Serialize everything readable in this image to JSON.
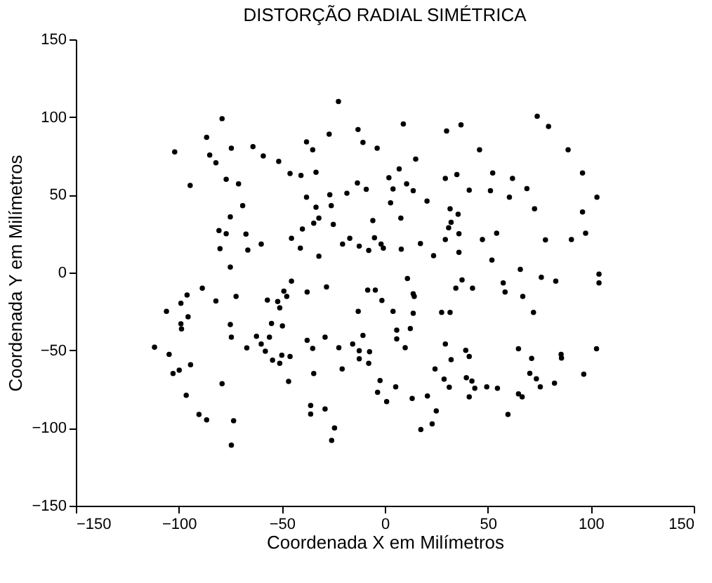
{
  "chart_data": {
    "type": "scatter",
    "title": "DISTORÇÃO RADIAL SIMÉTRICA",
    "xlabel": "Coordenada X em Milímetros",
    "ylabel": "Coordenada Y em Milímetros",
    "xlim": [
      -150,
      150
    ],
    "ylim": [
      -150,
      150
    ],
    "xticks": [
      -150,
      -100,
      -50,
      0,
      50,
      100,
      150
    ],
    "yticks": [
      -150,
      -100,
      -50,
      0,
      50,
      100,
      150
    ],
    "grid": false,
    "marker": "circle",
    "series": [
      {
        "color": "#000000",
        "x": [
          -22.5,
          -79,
          74,
          79.5,
          9,
          37,
          30,
          -13,
          -27,
          -86.5,
          -102,
          -74.5,
          -64,
          -59,
          -51.5,
          -85,
          -82,
          -38,
          -35,
          -10.6,
          -3.7,
          46,
          89,
          15,
          96,
          -46,
          -40.7,
          -33.4,
          2,
          7,
          10.6,
          13.8,
          29.4,
          35,
          41,
          52.4,
          62,
          69,
          51.3,
          60.5,
          103,
          -77,
          -71,
          -94.5,
          -38,
          -26.7,
          -26,
          -18.4,
          -13.3,
          -9,
          4,
          20.5,
          2.8,
          31.7,
          35.6,
          72.7,
          96,
          -69,
          -75,
          -33.4,
          -32,
          -34.5,
          -25,
          -40,
          -80.5,
          -77,
          -67.4,
          -80,
          -66.5,
          -60,
          -45.3,
          -41,
          -32,
          -20.5,
          -17,
          -12.4,
          -7.8,
          -5.8,
          -5,
          -1.8,
          -0.7,
          7.8,
          8,
          17.3,
          23.7,
          29.4,
          31,
          32.2,
          36,
          36,
          47.4,
          54.3,
          52,
          78,
          90.6,
          97.5,
          -75,
          65.8,
          76,
          83,
          104,
          104,
          11,
          37.5,
          42.6,
          34.5,
          57.5,
          58.4,
          67,
          -45.3,
          -37.7,
          -28.3,
          -49,
          -47.6,
          -52,
          -51,
          -57,
          -72.2,
          -82,
          -88.6,
          -96,
          -99,
          -106,
          -95.5,
          -99,
          -98.7,
          -75,
          -74.5,
          -67,
          -55,
          -49.7,
          -62.3,
          -60,
          -56,
          -58,
          -54.5,
          -51,
          -50,
          -46,
          -46.7,
          -37.7,
          -35,
          -29,
          -34.5,
          -36,
          -36,
          -29,
          -24.4,
          -25.8,
          -22.3,
          -20.7,
          -15.6,
          -12.9,
          -10.6,
          -12.4,
          -12.4,
          -7.4,
          -7.8,
          -8.3,
          -4.6,
          -1.4,
          4,
          5.8,
          5.8,
          12.4,
          13.8,
          14.3,
          13.8,
          9.9,
          -2.3,
          -3.5,
          5.3,
          0.9,
          13.3,
          20.7,
          17.5,
          23,
          25,
          24.4,
          27.6,
          31.7,
          29.4,
          32.2,
          28.8,
          31.3,
          39.3,
          41,
          39.6,
          42.3,
          41,
          43.7,
          49.5,
          54.7,
          59.8,
          64.9,
          71.3,
          72.2,
          70.4,
          73.6,
          75.5,
          64.9,
          66.7,
          82.4,
          85.6,
          85.8,
          96.6,
          102.8,
          -111.8,
          -104.7,
          -102.8,
          -99.8,
          -94.3,
          -96.4,
          -90.2,
          -86.5,
          -79,
          -73.4,
          -74.5
        ],
        "values": [
          110,
          99,
          100.5,
          94,
          95.6,
          95,
          91,
          92,
          89,
          87,
          77.6,
          80,
          81,
          75,
          71.5,
          75.6,
          70.6,
          84,
          79,
          83.7,
          80,
          79,
          79,
          73,
          64,
          63.7,
          62.5,
          64.5,
          61,
          66.6,
          57,
          52.6,
          60.5,
          63,
          53,
          64,
          60.5,
          54,
          52.6,
          48.5,
          48.5,
          60,
          57,
          56,
          48.5,
          50,
          43,
          51,
          57.6,
          53.5,
          53.8,
          46,
          44.8,
          41,
          37.5,
          41,
          39,
          43,
          35.8,
          42,
          35,
          31.7,
          31,
          28,
          27,
          25,
          24.7,
          15.4,
          14.5,
          18.3,
          22,
          15.7,
          10.5,
          18.3,
          22,
          17,
          14.2,
          33.4,
          22.4,
          18.3,
          15.7,
          35,
          15,
          18.6,
          10.8,
          21.2,
          28.8,
          32.3,
          25,
          13,
          21.2,
          25.3,
          8,
          21,
          21.2,
          25.3,
          3.5,
          2,
          -3,
          -5.5,
          -1,
          -6.7,
          -3.8,
          -4.7,
          -10,
          -10,
          -6.7,
          -12.5,
          -15.4,
          -5.5,
          -12.5,
          -9.3,
          -12,
          -15.4,
          -18.6,
          -22.7,
          -17.7,
          -15.4,
          -18.3,
          -10,
          -14.5,
          -19.8,
          -25,
          -28.5,
          -33,
          -36.3,
          -33.4,
          -41.6,
          -48.5,
          -32.8,
          -34.3,
          -41,
          -46,
          -41.6,
          -50.6,
          -56.4,
          -58.4,
          -53.2,
          -54,
          -70,
          -43.6,
          -48.8,
          -41.6,
          -65,
          -85.5,
          -91,
          -87.8,
          -100,
          -108,
          -48.3,
          -62,
          -46,
          -25,
          -40.4,
          -50.3,
          -55.5,
          -50.9,
          -58.4,
          -11.3,
          -11.3,
          -18,
          -25,
          -37,
          -42.7,
          -36,
          -13.7,
          -15.4,
          -26.2,
          -48.3,
          -69.5,
          -77,
          -73.5,
          -83,
          -81,
          -79.4,
          -101,
          -97.4,
          -89,
          -62,
          -25.6,
          -25.6,
          -46,
          -56,
          -68.6,
          -73.8,
          -50,
          -54,
          -67.7,
          -69.8,
          -80,
          -74.4,
          -73.5,
          -74.4,
          -91.3,
          -49,
          -55.2,
          -25.6,
          -64.8,
          -68.3,
          -73.5,
          -78,
          -80,
          -71.2,
          -52.6,
          -55,
          -65.4,
          -49,
          -48,
          -52.6,
          -65,
          -62.8,
          -59.3,
          -79,
          -91.3,
          -94.8,
          -71.5,
          -95.3,
          -111
        ]
      }
    ]
  }
}
